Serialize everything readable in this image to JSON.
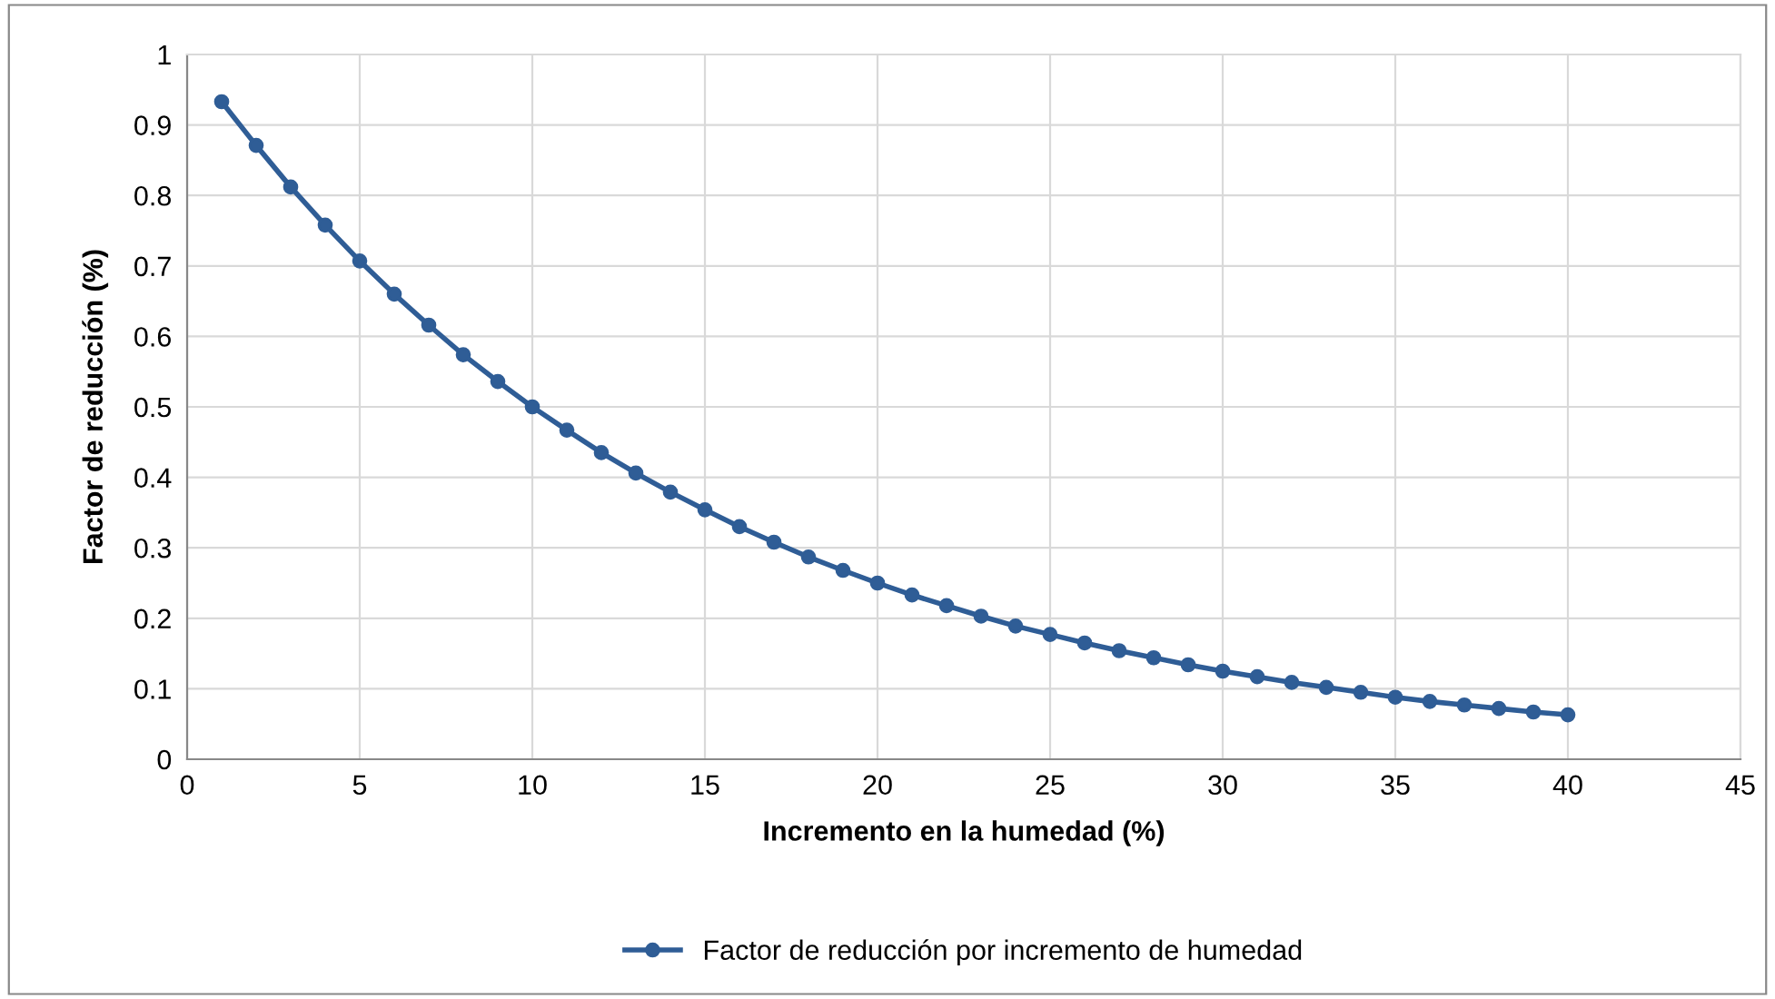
{
  "chart_data": {
    "type": "line",
    "xlabel": "Incremento en la humedad (%)",
    "ylabel": "Factor de reducción (%)",
    "x": [
      1,
      2,
      3,
      4,
      5,
      6,
      7,
      8,
      9,
      10,
      11,
      12,
      13,
      14,
      15,
      16,
      17,
      18,
      19,
      20,
      21,
      22,
      23,
      24,
      25,
      26,
      27,
      28,
      29,
      30,
      31,
      32,
      33,
      34,
      35,
      36,
      37,
      38,
      39,
      40
    ],
    "series": [
      {
        "name": "Factor de reducción por incremento de humedad",
        "color": "#2f5d96",
        "values": [
          0.933,
          0.871,
          0.812,
          0.758,
          0.707,
          0.66,
          0.616,
          0.574,
          0.536,
          0.5,
          0.467,
          0.435,
          0.406,
          0.379,
          0.354,
          0.33,
          0.308,
          0.287,
          0.268,
          0.25,
          0.233,
          0.218,
          0.203,
          0.189,
          0.177,
          0.165,
          0.154,
          0.144,
          0.134,
          0.125,
          0.117,
          0.109,
          0.102,
          0.095,
          0.088,
          0.082,
          0.077,
          0.072,
          0.067,
          0.063
        ]
      }
    ],
    "xlim": [
      0,
      45
    ],
    "xticks": [
      0,
      5,
      10,
      15,
      20,
      25,
      30,
      35,
      40,
      45
    ],
    "ylim": [
      0,
      1
    ],
    "yticks": [
      0,
      0.1,
      0.2,
      0.3,
      0.4,
      0.5,
      0.6,
      0.7,
      0.8,
      0.9,
      1
    ],
    "grid": true,
    "legend": "bottom",
    "marker": "circle",
    "line_style": "solid"
  }
}
